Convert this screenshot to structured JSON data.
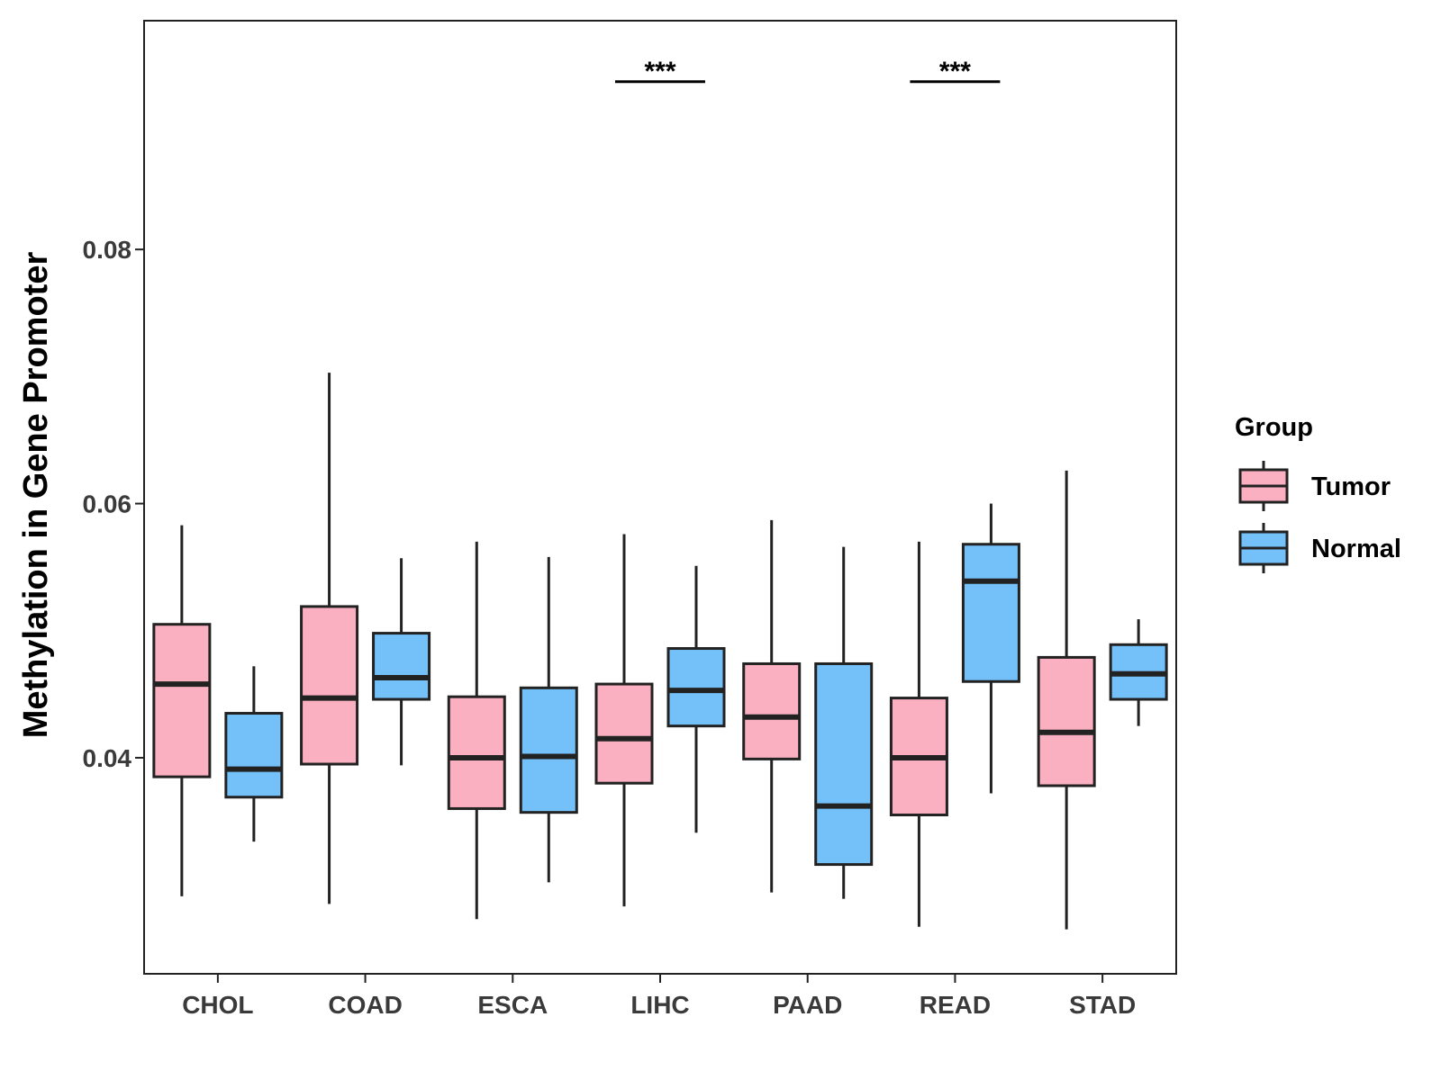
{
  "chart_data": {
    "type": "boxplot",
    "title": "",
    "xlabel": "",
    "ylabel": "Methylation in Gene Promoter",
    "ylim": [
      0.023,
      0.098
    ],
    "yticks": [
      0.04,
      0.06,
      0.08
    ],
    "ytick_labels": [
      "0.04",
      "0.06",
      "0.08"
    ],
    "categories": [
      "CHOL",
      "COAD",
      "ESCA",
      "LIHC",
      "PAAD",
      "READ",
      "STAD"
    ],
    "legend": {
      "title": "Group",
      "position": "right"
    },
    "series": [
      {
        "name": "Tumor",
        "color": "#FBB0C1",
        "boxes": [
          {
            "min": 0.0291,
            "q1": 0.0385,
            "median": 0.0458,
            "q3": 0.0505,
            "max": 0.0583
          },
          {
            "min": 0.0285,
            "q1": 0.0395,
            "median": 0.0447,
            "q3": 0.0519,
            "max": 0.0703
          },
          {
            "min": 0.0273,
            "q1": 0.036,
            "median": 0.04,
            "q3": 0.0448,
            "max": 0.057
          },
          {
            "min": 0.0283,
            "q1": 0.038,
            "median": 0.0415,
            "q3": 0.0458,
            "max": 0.0576
          },
          {
            "min": 0.0294,
            "q1": 0.0399,
            "median": 0.0432,
            "q3": 0.0474,
            "max": 0.0587
          },
          {
            "min": 0.0267,
            "q1": 0.0355,
            "median": 0.04,
            "q3": 0.0447,
            "max": 0.057
          },
          {
            "min": 0.0265,
            "q1": 0.0378,
            "median": 0.042,
            "q3": 0.0479,
            "max": 0.0626
          }
        ]
      },
      {
        "name": "Normal",
        "color": "#74C0F9",
        "boxes": [
          {
            "min": 0.0334,
            "q1": 0.0369,
            "median": 0.0391,
            "q3": 0.0435,
            "max": 0.0472
          },
          {
            "min": 0.0394,
            "q1": 0.0446,
            "median": 0.0463,
            "q3": 0.0498,
            "max": 0.0557
          },
          {
            "min": 0.0302,
            "q1": 0.0357,
            "median": 0.0401,
            "q3": 0.0455,
            "max": 0.0558
          },
          {
            "min": 0.0341,
            "q1": 0.0425,
            "median": 0.0453,
            "q3": 0.0486,
            "max": 0.0551
          },
          {
            "min": 0.0289,
            "q1": 0.0316,
            "median": 0.0362,
            "q3": 0.0474,
            "max": 0.0566
          },
          {
            "min": 0.0372,
            "q1": 0.046,
            "median": 0.0539,
            "q3": 0.0568,
            "max": 0.06
          },
          {
            "min": 0.0425,
            "q1": 0.0446,
            "median": 0.0466,
            "q3": 0.0489,
            "max": 0.0509
          }
        ]
      }
    ],
    "significance": [
      {
        "category": "LIHC",
        "label": "***",
        "y": 0.0932
      },
      {
        "category": "READ",
        "label": "***",
        "y": 0.0932
      }
    ]
  },
  "colors": {
    "outline": "#222222",
    "panel_border": "#222222",
    "background": "#ffffff"
  }
}
